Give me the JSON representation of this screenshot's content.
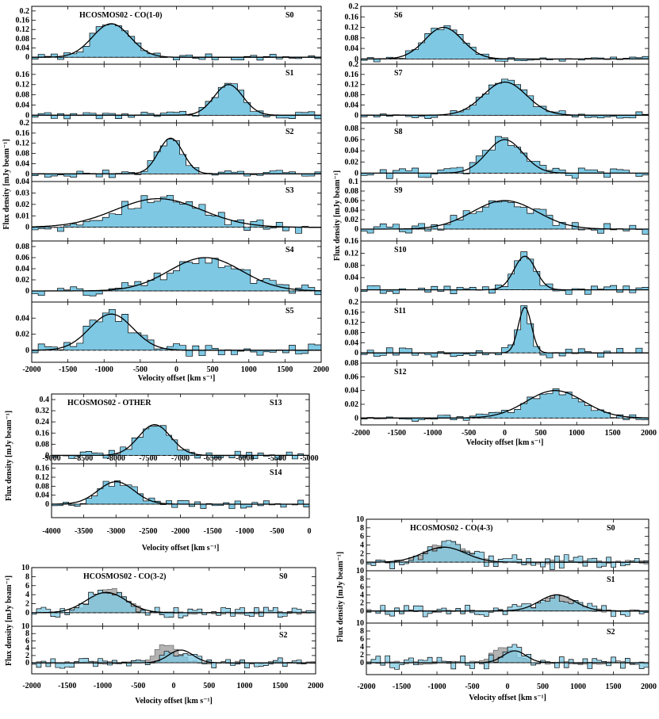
{
  "chart_data": {
    "type": "step",
    "units": {
      "x": "km s^-1",
      "y": "mJy beam^-1"
    },
    "colors": {
      "fill": "#7ec8e3",
      "grey": "#b3b3b3",
      "overlap": "#5a8ca3",
      "fit": "#000000"
    },
    "groups": [
      {
        "id": "co10-left",
        "title": "HCOSMOS02 - CO(1-0)",
        "xlabel": "Velocity offset [km s⁻¹]",
        "ylabel": "Flux density [mJy beam⁻¹]",
        "xlim": [
          -2000,
          2000
        ],
        "xticks": [
          "-2000",
          "-1500",
          "-1000",
          "-500",
          "0",
          "500",
          "1000",
          "1500",
          "2000"
        ],
        "panels": [
          {
            "label": "S0",
            "ylim": [
              -0.03,
              0.22
            ],
            "yticks": [
              "0",
              "0.04",
              "0.08",
              "0.12",
              "0.16",
              "0.2"
            ],
            "fit": {
              "amp": 0.145,
              "mu": -900,
              "sigma": 260
            },
            "noise": 0.015
          },
          {
            "label": "S1",
            "ylim": [
              -0.03,
              0.2
            ],
            "yticks": [
              "0",
              "0.04",
              "0.08",
              "0.12",
              "0.16"
            ],
            "fit": {
              "amp": 0.12,
              "mu": 720,
              "sigma": 200
            },
            "noise": 0.015
          },
          {
            "label": "S2",
            "ylim": [
              -0.03,
              0.2
            ],
            "yticks": [
              "0",
              "0.04",
              "0.08",
              "0.12",
              "0.16",
              "0.2"
            ],
            "fit": {
              "amp": 0.14,
              "mu": -80,
              "sigma": 170
            },
            "noise": 0.015
          },
          {
            "label": "S3",
            "ylim": [
              -0.012,
              0.04
            ],
            "yticks": [
              "0",
              "0.01",
              "0.02",
              "0.03",
              "0.04"
            ],
            "fit": {
              "amp": 0.025,
              "mu": -250,
              "sigma": 600
            },
            "noise": 0.006
          },
          {
            "label": "S4",
            "ylim": [
              -0.02,
              0.09
            ],
            "yticks": [
              "0",
              "0.02",
              "0.04",
              "0.06",
              "0.08"
            ],
            "fit": {
              "amp": 0.06,
              "mu": 400,
              "sigma": 500
            },
            "noise": 0.012
          },
          {
            "label": "S5",
            "ylim": [
              -0.015,
              0.06
            ],
            "yticks": [
              "0",
              "0.02",
              "0.04"
            ],
            "fit": {
              "amp": 0.045,
              "mu": -900,
              "sigma": 300
            },
            "noise": 0.008
          }
        ]
      },
      {
        "id": "co10-right",
        "title": "",
        "xlabel": "Velocity offset [km s⁻¹]",
        "ylabel": "Flux density [mJy beam⁻¹]",
        "xlim": [
          -2000,
          2000
        ],
        "xticks": [
          "-2000",
          "-1500",
          "-1000",
          "-500",
          "0",
          "500",
          "1000",
          "1500",
          "2000"
        ],
        "panels": [
          {
            "label": "S6",
            "ylim": [
              -0.02,
              0.2
            ],
            "yticks": [
              "0",
              "0.04",
              "0.08",
              "0.12",
              "0.16",
              "0.2"
            ],
            "fit": {
              "amp": 0.12,
              "mu": -850,
              "sigma": 260
            },
            "noise": 0.012
          },
          {
            "label": "S7",
            "ylim": [
              -0.03,
              0.2
            ],
            "yticks": [
              "0",
              "0.04",
              "0.08",
              "0.12",
              "0.16",
              "0.2"
            ],
            "fit": {
              "amp": 0.13,
              "mu": 0,
              "sigma": 300
            },
            "noise": 0.015
          },
          {
            "label": "S8",
            "ylim": [
              -0.015,
              0.09
            ],
            "yticks": [
              "0",
              "0.02",
              "0.04",
              "0.06",
              "0.08"
            ],
            "fit": {
              "amp": 0.06,
              "mu": 0,
              "sigma": 250
            },
            "noise": 0.01
          },
          {
            "label": "S9",
            "ylim": [
              -0.025,
              0.1
            ],
            "yticks": [
              "0",
              "0.02",
              "0.04",
              "0.06",
              "0.08",
              "0.1"
            ],
            "fit": {
              "amp": 0.06,
              "mu": 0,
              "sigma": 450
            },
            "noise": 0.012
          },
          {
            "label": "S10",
            "ylim": [
              -0.04,
              0.16
            ],
            "yticks": [
              "0",
              "0.04",
              "0.08",
              "0.12",
              "0.16"
            ],
            "fit": {
              "amp": 0.11,
              "mu": 280,
              "sigma": 150
            },
            "noise": 0.015
          },
          {
            "label": "S11",
            "ylim": [
              -0.04,
              0.2
            ],
            "yticks": [
              "0",
              "0.04",
              "0.08",
              "0.12",
              "0.16",
              "0.2"
            ],
            "fit": {
              "amp": 0.18,
              "mu": 280,
              "sigma": 90
            },
            "noise": 0.02
          },
          {
            "label": "S12",
            "ylim": [
              -0.01,
              0.08
            ],
            "yticks": [
              "0",
              "0.02",
              "0.04",
              "0.06",
              "0.08"
            ],
            "fit": {
              "amp": 0.04,
              "mu": 700,
              "sigma": 400
            },
            "noise": 0.005
          }
        ]
      },
      {
        "id": "other",
        "title": "HCOSMOS02 - OTHER",
        "xlabel": "Velocity offset [km s⁻¹]",
        "ylabel": "Flux density [mJy beam⁻¹]",
        "panels": [
          {
            "label": "S13",
            "xlim": [
              -9000,
              -5000
            ],
            "xticks": [
              "-9000",
              "-8500",
              "-8000",
              "-7500",
              "-7000",
              "-6500",
              "-6000",
              "-5500",
              "-5000"
            ],
            "ylim": [
              -0.06,
              0.44
            ],
            "yticks": [
              "0",
              "0.08",
              "0.16",
              "0.24",
              "0.32",
              "0.4"
            ],
            "fit": {
              "amp": 0.22,
              "mu": -7400,
              "sigma": 250
            },
            "noise": 0.03
          },
          {
            "label": "S14",
            "xlim": [
              -4000,
              0
            ],
            "xticks": [
              "-4000",
              "-3500",
              "-3000",
              "-2500",
              "-2000",
              "-1500",
              "-1000",
              "-500",
              "0"
            ],
            "ylim": [
              -0.06,
              0.18
            ],
            "yticks": [
              "0",
              "0.04",
              "0.08",
              "0.12",
              "0.16"
            ],
            "fit": {
              "amp": 0.1,
              "mu": -3000,
              "sigma": 280
            },
            "noise": 0.02
          }
        ]
      },
      {
        "id": "co32",
        "title": "HCOSMOS02 - CO(3-2)",
        "xlabel": "Velocity offset [km s⁻¹]",
        "ylabel": "Flux density [mJy beam⁻¹]",
        "xlim": [
          -2000,
          2000
        ],
        "xticks": [
          "-2000",
          "-1500",
          "-1000",
          "-500",
          "0",
          "500",
          "1000",
          "1500",
          "2000"
        ],
        "panels": [
          {
            "label": "S0",
            "ylim": [
              -3,
              10
            ],
            "yticks": [
              "0",
              "2",
              "4",
              "6",
              "8",
              "10"
            ],
            "fit": {
              "amp": 4.5,
              "mu": -950,
              "sigma": 280
            },
            "noise": 1.2,
            "grey": {
              "amp": 5.5,
              "mu": -900,
              "sigma": 230
            }
          },
          {
            "label": "S2",
            "ylim": [
              -3,
              10
            ],
            "yticks": [
              "0",
              "2",
              "4",
              "6",
              "8",
              "10"
            ],
            "fit": {
              "amp": 3.5,
              "mu": 100,
              "sigma": 170
            },
            "noise": 1.5,
            "grey": {
              "amp": 5,
              "mu": -100,
              "sigma": 160
            }
          }
        ]
      },
      {
        "id": "co43",
        "title": "HCOSMOS02 - CO(4-3)",
        "xlabel": "Velocity offset [km s⁻¹]",
        "ylabel": "Flux density [mJy beam⁻¹]",
        "xlim": [
          -2000,
          2000
        ],
        "xticks": [
          "-2000",
          "-1500",
          "-1000",
          "-500",
          "0",
          "500",
          "1000",
          "1500",
          "2000"
        ],
        "panels": [
          {
            "label": "S0",
            "ylim": [
              -2,
              10
            ],
            "yticks": [
              "0",
              "2",
              "4",
              "6",
              "8",
              "10"
            ],
            "fit": {
              "amp": 3.5,
              "mu": -900,
              "sigma": 300
            },
            "noise": 1.8,
            "grey": {
              "amp": 4.5,
              "mu": -850,
              "sigma": 260
            }
          },
          {
            "label": "S1",
            "ylim": [
              -3,
              10
            ],
            "yticks": [
              "0",
              "2",
              "4",
              "6",
              "8",
              "10"
            ],
            "fit": {
              "amp": 4,
              "mu": 700,
              "sigma": 250
            },
            "noise": 1.5,
            "grey": {
              "amp": 4,
              "mu": 720,
              "sigma": 220
            }
          },
          {
            "label": "S2",
            "ylim": [
              -3,
              10
            ],
            "yticks": [
              "0",
              "2",
              "4",
              "6",
              "8",
              "10"
            ],
            "fit": {
              "amp": 3,
              "mu": 100,
              "sigma": 160
            },
            "noise": 1.8,
            "grey": {
              "amp": 4,
              "mu": -50,
              "sigma": 170
            }
          }
        ]
      }
    ]
  }
}
